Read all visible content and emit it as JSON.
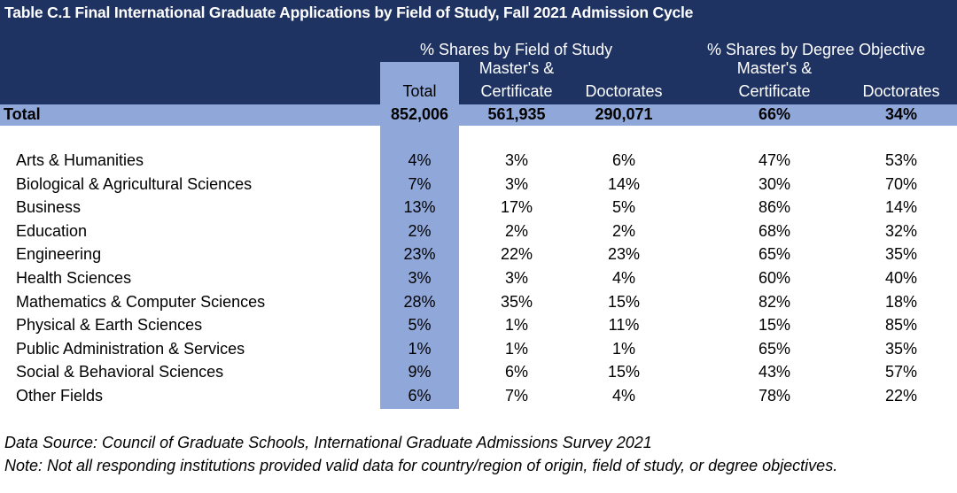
{
  "title": "Table C.1 Final International Graduate Applications by Field of Study, Fall 2021 Admission Cycle",
  "group_headers": {
    "field_of_study": "% Shares by Field of Study",
    "degree_objective": "% Shares by Degree Objective"
  },
  "column_headers": {
    "total": "Total",
    "field_masters_line1": "Master's &",
    "field_masters_line2": "Certificate",
    "field_doctorates": "Doctorates",
    "degree_masters_line1": "Master's &",
    "degree_masters_line2": "Certificate",
    "degree_doctorates": "Doctorates"
  },
  "total_row": {
    "label": "Total",
    "values": [
      "852,006",
      "561,935",
      "290,071",
      "66%",
      "34%"
    ]
  },
  "rows": [
    {
      "label": "Arts & Humanities",
      "values": [
        "4%",
        "3%",
        "6%",
        "47%",
        "53%"
      ]
    },
    {
      "label": "Biological & Agricultural Sciences",
      "values": [
        "7%",
        "3%",
        "14%",
        "30%",
        "70%"
      ]
    },
    {
      "label": "Business",
      "values": [
        "13%",
        "17%",
        "5%",
        "86%",
        "14%"
      ]
    },
    {
      "label": "Education",
      "values": [
        "2%",
        "2%",
        "2%",
        "68%",
        "32%"
      ]
    },
    {
      "label": "Engineering",
      "values": [
        "23%",
        "22%",
        "23%",
        "65%",
        "35%"
      ]
    },
    {
      "label": "Health Sciences",
      "values": [
        "3%",
        "3%",
        "4%",
        "60%",
        "40%"
      ]
    },
    {
      "label": "Mathematics & Computer Sciences",
      "values": [
        "28%",
        "35%",
        "15%",
        "82%",
        "18%"
      ]
    },
    {
      "label": "Physical & Earth Sciences",
      "values": [
        "5%",
        "1%",
        "11%",
        "15%",
        "85%"
      ]
    },
    {
      "label": "Public Administration & Services",
      "values": [
        "1%",
        "1%",
        "1%",
        "65%",
        "35%"
      ]
    },
    {
      "label": "Social & Behavioral Sciences",
      "values": [
        "9%",
        "6%",
        "15%",
        "43%",
        "57%"
      ]
    },
    {
      "label": "Other Fields",
      "values": [
        "6%",
        "7%",
        "4%",
        "78%",
        "22%"
      ]
    }
  ],
  "footnotes": {
    "source": "Data Source: Council of Graduate Schools, International Graduate Admissions Survey 2021",
    "note": "Note: Not all responding institutions provided valid data for country/region of origin, field of study, or degree objectives."
  },
  "colors": {
    "header_navy": "#1f3363",
    "highlight_blue": "#90a7d9"
  }
}
